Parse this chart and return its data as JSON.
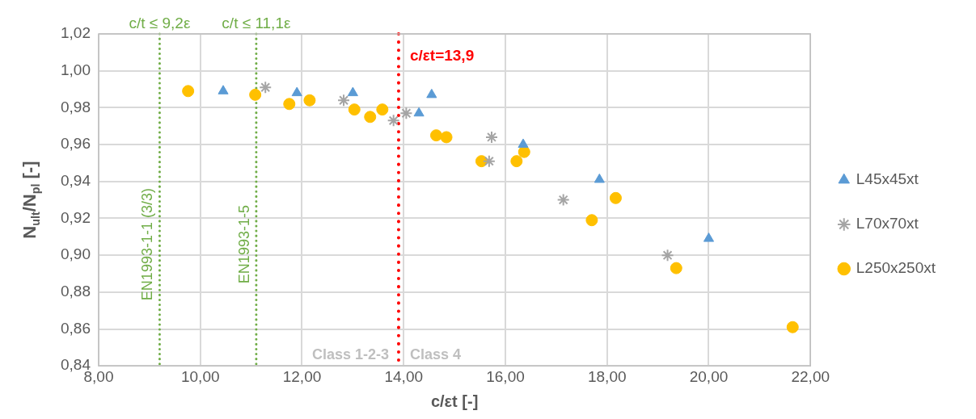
{
  "chart_data": {
    "type": "scatter",
    "xlabel": "c/εt [-]",
    "ylabel": "N$_{ult}$/N$_{pl}$ [-]",
    "xlim": [
      8,
      22
    ],
    "xticks": [
      {
        "value": 8,
        "label": "8,00"
      },
      {
        "value": 10,
        "label": "10,00"
      },
      {
        "value": 12,
        "label": "12,00"
      },
      {
        "value": 14,
        "label": "14,00"
      },
      {
        "value": 16,
        "label": "16,00"
      },
      {
        "value": 18,
        "label": "18,00"
      },
      {
        "value": 20,
        "label": "20,00"
      },
      {
        "value": 22,
        "label": "22,00"
      }
    ],
    "ylim": [
      0.84,
      1.02
    ],
    "yticks": [
      {
        "value": 0.84,
        "label": "0,84"
      },
      {
        "value": 0.86,
        "label": "0,86"
      },
      {
        "value": 0.88,
        "label": "0,88"
      },
      {
        "value": 0.9,
        "label": "0,90"
      },
      {
        "value": 0.92,
        "label": "0,92"
      },
      {
        "value": 0.94,
        "label": "0,94"
      },
      {
        "value": 0.96,
        "label": "0,96"
      },
      {
        "value": 0.98,
        "label": "0,98"
      },
      {
        "value": 1.0,
        "label": "1,00"
      },
      {
        "value": 1.02,
        "label": "1,02"
      }
    ],
    "grid": true,
    "legend": "right",
    "series": [
      {
        "name": "L45x45xt",
        "color": "#5b9bd5",
        "marker": "triangle",
        "x": [
          10.45,
          11.9,
          13.0,
          14.55,
          14.3,
          16.35,
          17.85,
          20.0
        ],
        "values": [
          0.989,
          0.988,
          0.988,
          0.987,
          0.977,
          0.96,
          0.941,
          0.909
        ]
      },
      {
        "name": "L70x70xt",
        "color": "#a5a5a5",
        "marker": "cross",
        "x": [
          11.28,
          12.82,
          13.8,
          14.05,
          15.73,
          15.68,
          17.14,
          19.19
        ],
        "values": [
          0.991,
          0.984,
          0.973,
          0.977,
          0.964,
          0.951,
          0.93,
          0.9
        ]
      },
      {
        "name": "L250x250xt",
        "color": "#ffc000",
        "marker": "circle",
        "x": [
          9.76,
          11.08,
          11.75,
          12.15,
          13.03,
          13.34,
          13.58,
          14.64,
          14.84,
          15.53,
          16.22,
          16.37,
          18.17,
          17.7,
          19.36,
          21.65
        ],
        "values": [
          0.989,
          0.987,
          0.982,
          0.984,
          0.979,
          0.975,
          0.979,
          0.965,
          0.964,
          0.951,
          0.951,
          0.956,
          0.931,
          0.919,
          0.893,
          0.861
        ]
      }
    ],
    "ref_lines": [
      {
        "axis": "x",
        "value": 9.2,
        "label": "EN1993-1-1 (3/3)",
        "color": "#70ad47",
        "line_style": "dotted"
      },
      {
        "axis": "x",
        "value": 11.1,
        "label": "EN1993-1-5",
        "color": "#70ad47",
        "line_style": "dotted"
      },
      {
        "axis": "x",
        "value": 13.9,
        "label": "c/εt=13,9",
        "color": "#ff0000",
        "line_style": "dotted"
      }
    ],
    "annotations": [
      {
        "text": "c/t ≤ 9,2ε",
        "x": 9.2,
        "y": 1.02
      },
      {
        "text": "c/t ≤ 11,1ε",
        "x": 11.1,
        "y": 1.02
      },
      "Class 1-2-3",
      "Class 4"
    ]
  }
}
